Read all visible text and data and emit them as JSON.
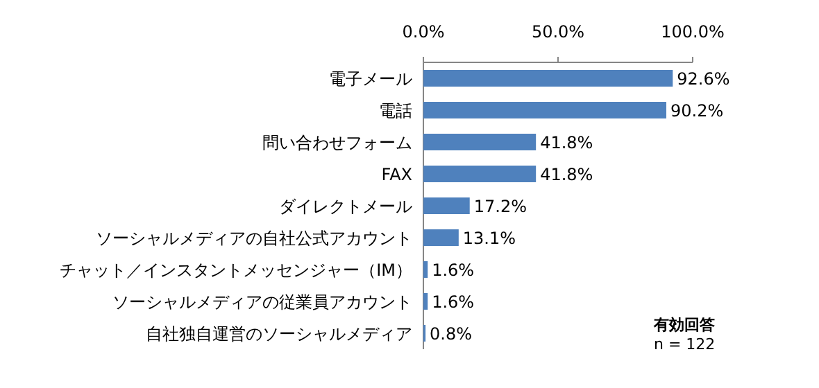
{
  "chart_data": {
    "type": "bar",
    "orientation": "horizontal",
    "categories": [
      "電子メール",
      "電話",
      "問い合わせフォーム",
      "FAX",
      "ダイレクトメール",
      "ソーシャルメディアの自社公式アカウント",
      "チャット／インスタントメッセンジャー（IM）",
      "ソーシャルメディアの従業員アカウント",
      "自社独自運営のソーシャルメディア"
    ],
    "values": [
      92.6,
      90.2,
      41.8,
      41.8,
      17.2,
      13.1,
      1.6,
      1.6,
      0.8
    ],
    "value_labels": [
      "92.6%",
      "90.2%",
      "41.8%",
      "41.8%",
      "17.2%",
      "13.1%",
      "1.6%",
      "1.6%",
      "0.8%"
    ],
    "color": "#4f81bd",
    "xlim": [
      0,
      100
    ],
    "xticks": [
      {
        "value": 0,
        "label": "0.0%"
      },
      {
        "value": 50,
        "label": "50.0%"
      },
      {
        "value": 100,
        "label": "100.0%"
      }
    ],
    "annotations": [
      "有効回答",
      "n = 122"
    ]
  }
}
